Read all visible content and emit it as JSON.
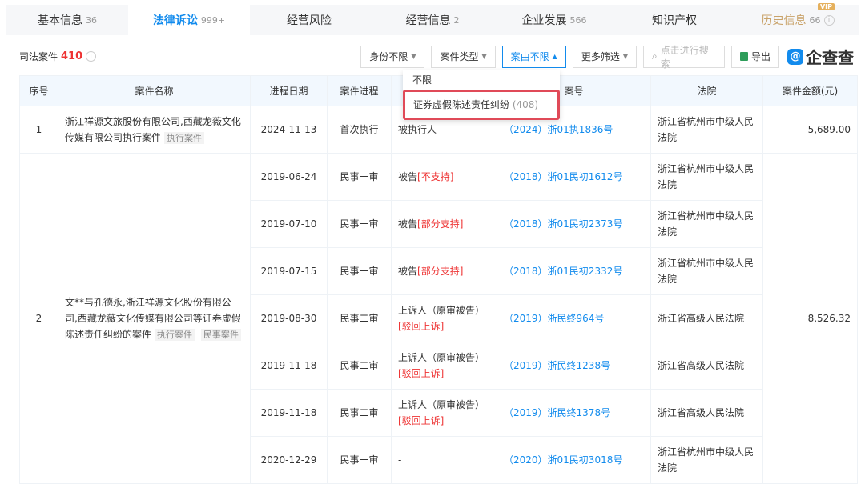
{
  "tabs": [
    {
      "label": "基本信息",
      "count": "36"
    },
    {
      "label": "法律诉讼",
      "count": "999+",
      "active": true
    },
    {
      "label": "经营风险",
      "count": ""
    },
    {
      "label": "经营信息",
      "count": "2"
    },
    {
      "label": "企业发展",
      "count": "566"
    },
    {
      "label": "知识产权",
      "count": ""
    },
    {
      "label": "历史信息",
      "count": "66",
      "badge": "VIP"
    }
  ],
  "summary": {
    "label": "司法案件",
    "count": "410"
  },
  "toolbar": {
    "identity": "身份不限",
    "case_type": "案件类型",
    "cause": "案由不限",
    "more": "更多筛选",
    "search_placeholder": "点击进行搜索",
    "export": "导出",
    "brand": "企查查"
  },
  "dropdown": {
    "options": [
      {
        "label": "不限"
      },
      {
        "label": "证券虚假陈述责任纠纷",
        "count": "(408)"
      }
    ]
  },
  "table": {
    "headers": [
      "序号",
      "案件名称",
      "进程日期",
      "案件进程",
      "",
      "案号",
      "法院",
      "案件金额(元)"
    ],
    "rows": [
      {
        "index": "1",
        "name": "浙江祥源文旅股份有限公司,西藏龙薇文化传媒有限公司执行案件",
        "tags": [
          "执行案件"
        ],
        "amount": "5,689.00",
        "entries": [
          {
            "date": "2024-11-13",
            "stage": "首次执行",
            "role": "被执行人",
            "result": "",
            "case_no": "（2024）浙01执1836号",
            "court": "浙江省杭州市中级人民法院"
          }
        ]
      },
      {
        "index": "2",
        "name": "文**与孔德永,浙江祥源文化股份有限公司,西藏龙薇文化传媒有限公司等证券虚假陈述责任纠纷的案件",
        "tags": [
          "执行案件",
          "民事案件"
        ],
        "amount": "8,526.32",
        "entries": [
          {
            "date": "2019-06-24",
            "stage": "民事一审",
            "role": "被告",
            "result": "[不支持]",
            "case_no": "（2018）浙01民初1612号",
            "court": "浙江省杭州市中级人民法院"
          },
          {
            "date": "2019-07-10",
            "stage": "民事一审",
            "role": "被告",
            "result": "[部分支持]",
            "case_no": "（2018）浙01民初2373号",
            "court": "浙江省杭州市中级人民法院"
          },
          {
            "date": "2019-07-15",
            "stage": "民事一审",
            "role": "被告",
            "result": "[部分支持]",
            "case_no": "（2018）浙01民初2332号",
            "court": "浙江省杭州市中级人民法院"
          },
          {
            "date": "2019-08-30",
            "stage": "民事二审",
            "role": "上诉人（原审被告）",
            "result": "[驳回上诉]",
            "case_no": "（2019）浙民终964号",
            "court": "浙江省高级人民法院"
          },
          {
            "date": "2019-11-18",
            "stage": "民事二审",
            "role": "上诉人（原审被告）",
            "result": "[驳回上诉]",
            "case_no": "（2019）浙民终1238号",
            "court": "浙江省高级人民法院"
          },
          {
            "date": "2019-11-18",
            "stage": "民事二审",
            "role": "上诉人（原审被告）",
            "result": "[驳回上诉]",
            "case_no": "（2019）浙民终1378号",
            "court": "浙江省高级人民法院"
          },
          {
            "date": "2020-12-29",
            "stage": "民事一审",
            "role": "-",
            "result": "",
            "case_no": "（2020）浙01民初3018号",
            "court": "浙江省杭州市中级人民法院"
          }
        ]
      }
    ]
  },
  "colors": {
    "accent": "#128bed",
    "danger": "#e33",
    "highlight_border": "#e04a58",
    "vip": "#c9a36a"
  }
}
